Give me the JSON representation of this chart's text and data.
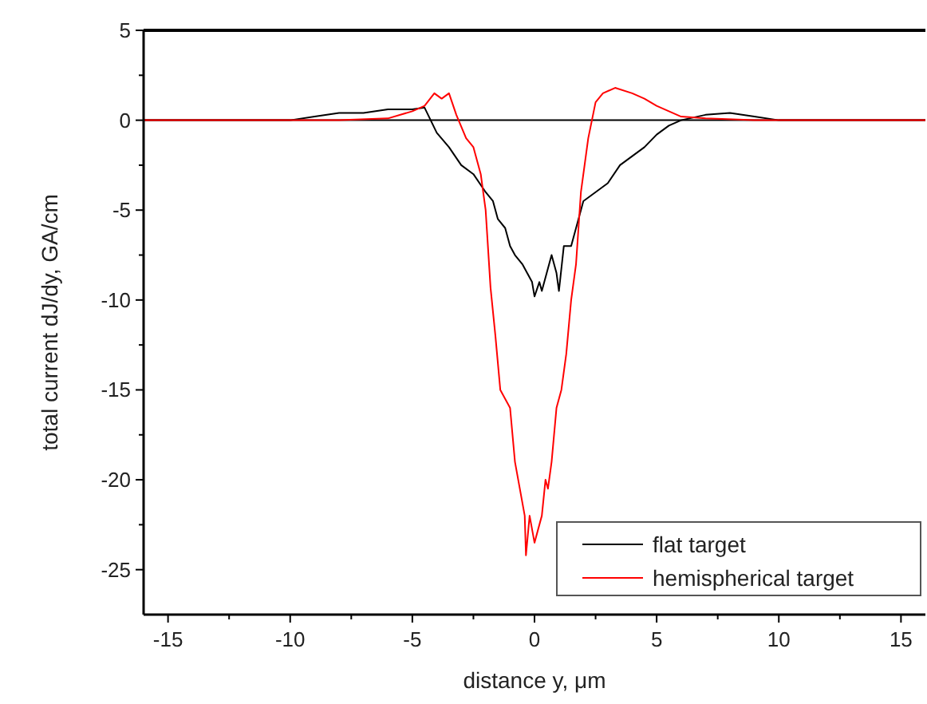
{
  "chart_data": {
    "type": "line",
    "xlabel": "distance y, μm",
    "ylabel": "total current dJ/dy, GA/cm",
    "xlim": [
      -16,
      16
    ],
    "ylim": [
      -27.5,
      5
    ],
    "xticks": [
      -15,
      -10,
      -5,
      0,
      5,
      10,
      15
    ],
    "yticks": [
      5,
      0,
      -5,
      -10,
      -15,
      -20,
      -25
    ],
    "grid": false,
    "legend": "bottom right",
    "line_style": "solid",
    "marker": "none",
    "ref_lines": [
      {
        "axis": "y",
        "value": 0,
        "color": "#000000"
      }
    ],
    "series": [
      {
        "name": "flat target",
        "color": "#000000",
        "x": [
          -16,
          -12,
          -10,
          -9,
          -8,
          -7,
          -6,
          -5,
          -4.5,
          -4,
          -3.5,
          -3,
          -2.5,
          -2,
          -1.7,
          -1.5,
          -1.2,
          -1,
          -0.8,
          -0.5,
          -0.3,
          -0.1,
          0,
          0.2,
          0.3,
          0.5,
          0.7,
          0.9,
          1,
          1.2,
          1.5,
          1.8,
          2,
          2.5,
          3,
          3.5,
          4,
          4.5,
          5,
          5.5,
          6,
          7,
          8,
          9,
          10,
          12,
          16
        ],
        "values": [
          0,
          0,
          0,
          0.2,
          0.4,
          0.4,
          0.6,
          0.6,
          0.7,
          -0.7,
          -1.5,
          -2.5,
          -3,
          -4,
          -4.5,
          -5.5,
          -6,
          -7,
          -7.5,
          -8,
          -8.5,
          -9,
          -9.8,
          -9,
          -9.5,
          -8.5,
          -7.5,
          -8.5,
          -9.5,
          -7,
          -7,
          -5.5,
          -4.5,
          -4,
          -3.5,
          -2.5,
          -2,
          -1.5,
          -0.8,
          -0.3,
          0,
          0.3,
          0.4,
          0.2,
          0,
          0,
          0
        ]
      },
      {
        "name": "hemispherical target",
        "color": "#ff0000",
        "x": [
          -16,
          -12,
          -8,
          -6,
          -5,
          -4.5,
          -4.1,
          -3.8,
          -3.5,
          -3.2,
          -2.8,
          -2.5,
          -2.2,
          -2,
          -1.8,
          -1.6,
          -1.4,
          -1.2,
          -1,
          -0.8,
          -0.6,
          -0.4,
          -0.35,
          -0.2,
          0,
          0.2,
          0.3,
          0.45,
          0.55,
          0.7,
          0.9,
          1.1,
          1.3,
          1.5,
          1.7,
          1.9,
          2.2,
          2.5,
          2.8,
          3.3,
          4,
          4.5,
          5,
          5.5,
          6,
          7,
          9,
          16
        ],
        "values": [
          0,
          0,
          0,
          0.1,
          0.5,
          0.8,
          1.5,
          1.2,
          1.5,
          0.3,
          -1,
          -1.5,
          -3,
          -5,
          -9.3,
          -12,
          -15,
          -15.5,
          -16,
          -19,
          -20.5,
          -22,
          -24.2,
          -22,
          -23.5,
          -22.5,
          -22,
          -20,
          -20.5,
          -19,
          -16,
          -15,
          -13,
          -10,
          -8,
          -4,
          -1,
          1,
          1.5,
          1.8,
          1.5,
          1.2,
          0.8,
          0.5,
          0.2,
          0.1,
          0,
          0
        ]
      }
    ]
  }
}
